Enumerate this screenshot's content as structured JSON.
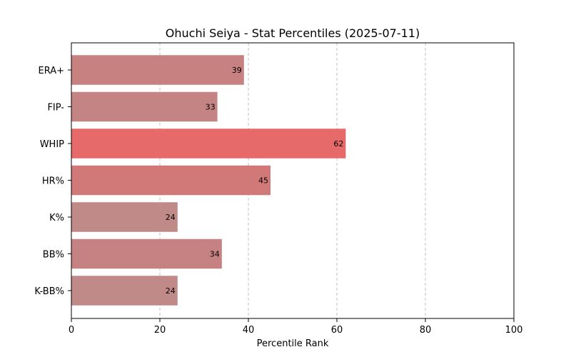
{
  "chart_data": {
    "type": "bar",
    "orientation": "horizontal",
    "title": "Ohuchi Seiya - Stat Percentiles (2025-07-11)",
    "xlabel": "Percentile Rank",
    "ylabel": "",
    "xlim": [
      0,
      100
    ],
    "xticks": [
      0,
      20,
      40,
      60,
      80,
      100
    ],
    "grid": "x-dashed",
    "categories": [
      "ERA+",
      "FIP-",
      "WHIP",
      "HR%",
      "K%",
      "BB%",
      "K-BB%"
    ],
    "values": [
      39,
      33,
      62,
      45,
      24,
      34,
      24
    ],
    "colors": [
      "#c78180",
      "#c48483",
      "#e66a6a",
      "#d17979",
      "#bf8a88",
      "#c68282",
      "#bf8a88"
    ]
  }
}
